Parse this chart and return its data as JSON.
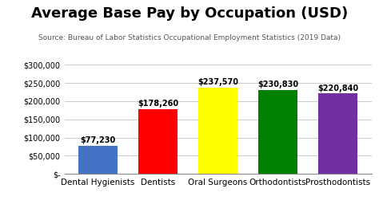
{
  "title": "Average Base Pay by Occupation (USD)",
  "subtitle": "Source: Bureau of Labor Statistics Occupational Employment Statistics (2019 Data)",
  "categories": [
    "Dental Hygienists",
    "Dentists",
    "Oral Surgeons",
    "Orthodontists",
    "Prosthodontists"
  ],
  "values": [
    77230,
    178260,
    237570,
    230830,
    220840
  ],
  "bar_colors": [
    "#4472C4",
    "#FF0000",
    "#FFFF00",
    "#008000",
    "#7030A0"
  ],
  "value_labels": [
    "$77,230",
    "$178,260",
    "$237,570",
    "$230,830",
    "$220,840"
  ],
  "ylim": [
    0,
    315000
  ],
  "yticks": [
    0,
    50000,
    100000,
    150000,
    200000,
    250000,
    300000
  ],
  "ytick_labels": [
    "$-",
    "$50,000",
    "$100,000",
    "$150,000",
    "$200,000",
    "$250,000",
    "$300,000"
  ],
  "background_color": "#FFFFFF",
  "grid_color": "#CCCCCC",
  "title_fontsize": 13,
  "subtitle_fontsize": 6.5,
  "label_fontsize": 7.5,
  "value_label_fontsize": 7,
  "tick_fontsize": 7
}
